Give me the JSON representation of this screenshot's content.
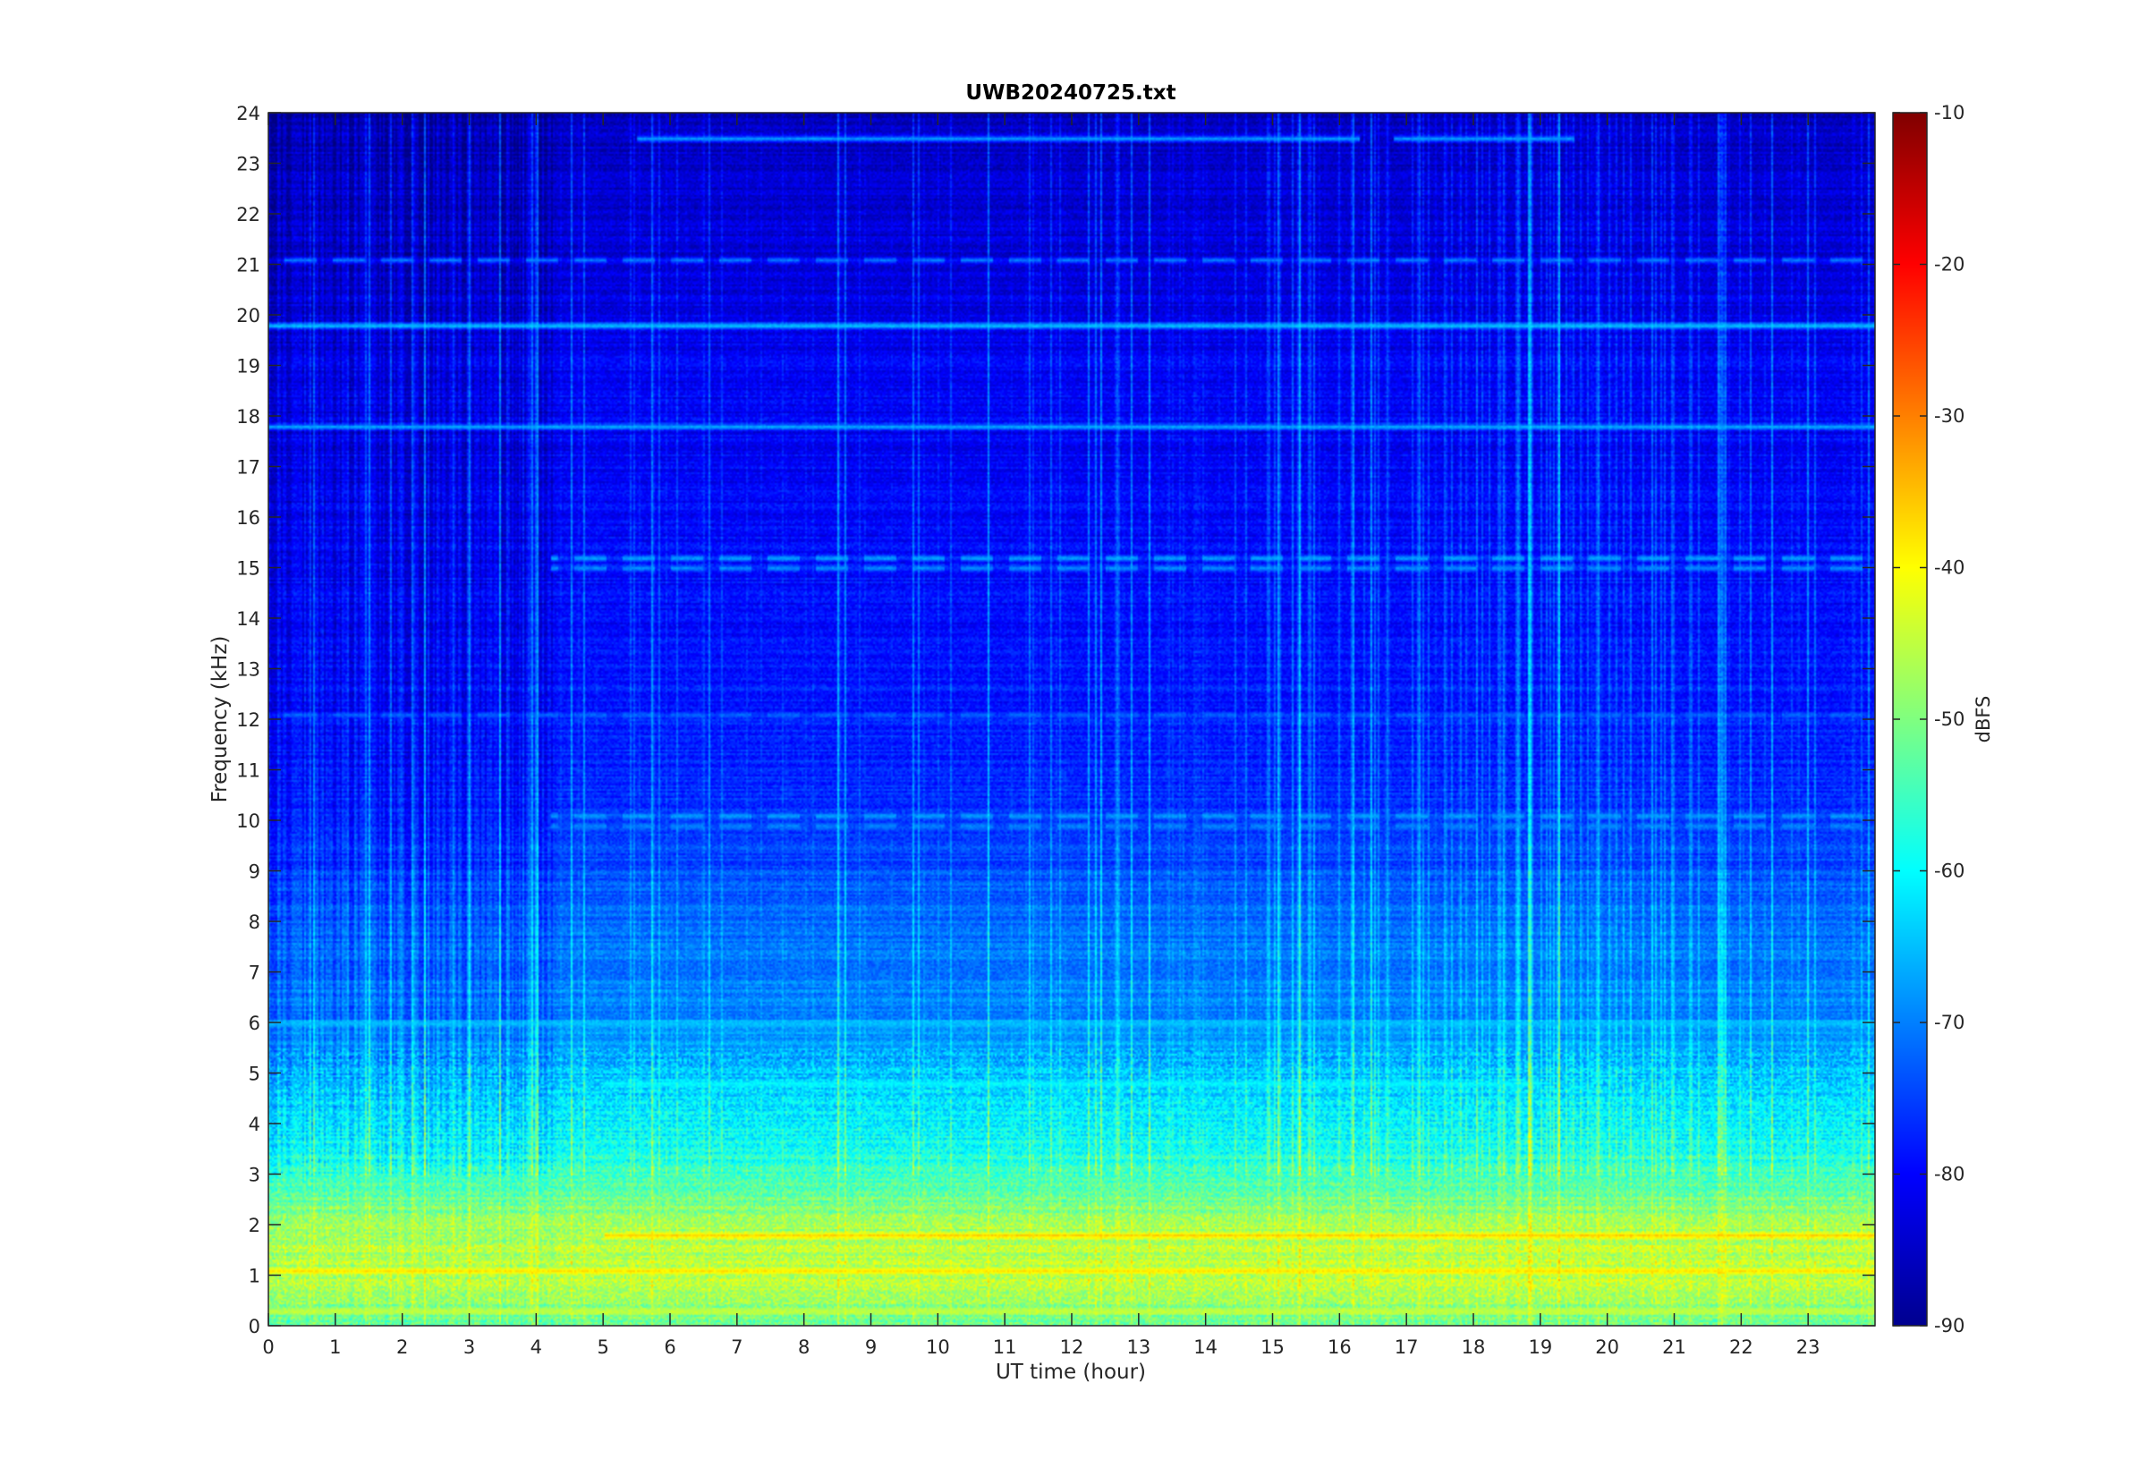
{
  "chart_data": {
    "type": "heatmap",
    "title": "UWB20240725.txt",
    "xlabel": "UT time (hour)",
    "ylabel": "Frequency (kHz)",
    "xlim": [
      0,
      24
    ],
    "ylim": [
      0,
      24
    ],
    "xticks": [
      0,
      1,
      2,
      3,
      4,
      5,
      6,
      7,
      8,
      9,
      10,
      11,
      12,
      13,
      14,
      15,
      16,
      17,
      18,
      19,
      20,
      21,
      22,
      23
    ],
    "yticks": [
      0,
      1,
      2,
      3,
      4,
      5,
      6,
      7,
      8,
      9,
      10,
      11,
      12,
      13,
      14,
      15,
      16,
      17,
      18,
      19,
      20,
      21,
      22,
      23,
      24
    ],
    "colorbar": {
      "label": "dBFS",
      "colormap": "jet",
      "clim": [
        -90,
        -10
      ],
      "ticks": [
        -10,
        -20,
        -30,
        -40,
        -50,
        -60,
        -70,
        -80,
        -90
      ]
    },
    "background_level_profile": [
      {
        "freq_khz": 0,
        "level_dbfs": -52
      },
      {
        "freq_khz": 1,
        "level_dbfs": -45
      },
      {
        "freq_khz": 2,
        "level_dbfs": -47
      },
      {
        "freq_khz": 3,
        "level_dbfs": -56
      },
      {
        "freq_khz": 4,
        "level_dbfs": -61
      },
      {
        "freq_khz": 5,
        "level_dbfs": -65
      },
      {
        "freq_khz": 6,
        "level_dbfs": -69
      },
      {
        "freq_khz": 8,
        "level_dbfs": -72
      },
      {
        "freq_khz": 10,
        "level_dbfs": -76
      },
      {
        "freq_khz": 13,
        "level_dbfs": -79
      },
      {
        "freq_khz": 16,
        "level_dbfs": -80
      },
      {
        "freq_khz": 19,
        "level_dbfs": -81
      },
      {
        "freq_khz": 21,
        "level_dbfs": -83
      },
      {
        "freq_khz": 24,
        "level_dbfs": -85
      }
    ],
    "narrowband_lines": [
      {
        "freq_khz": 19.8,
        "level_dbfs": -63,
        "t_start": 0,
        "t_end": 24
      },
      {
        "freq_khz": 17.8,
        "level_dbfs": -66,
        "t_start": 0,
        "t_end": 24
      },
      {
        "freq_khz": 23.5,
        "level_dbfs": -67,
        "t_start": 5.5,
        "t_end": 16.3
      },
      {
        "freq_khz": 23.5,
        "level_dbfs": -67,
        "t_start": 16.8,
        "t_end": 19.5
      },
      {
        "freq_khz": 21.1,
        "level_dbfs": -70,
        "t_start": 0,
        "t_end": 24
      },
      {
        "freq_khz": 15.2,
        "level_dbfs": -66,
        "t_start": 4.2,
        "t_end": 24
      },
      {
        "freq_khz": 15.0,
        "level_dbfs": -68,
        "t_start": 4.2,
        "t_end": 24
      },
      {
        "freq_khz": 10.1,
        "level_dbfs": -67,
        "t_start": 4.2,
        "t_end": 24
      },
      {
        "freq_khz": 9.9,
        "level_dbfs": -69,
        "t_start": 4.2,
        "t_end": 24
      },
      {
        "freq_khz": 12.1,
        "level_dbfs": -72,
        "t_start": 0,
        "t_end": 24
      },
      {
        "freq_khz": 6.0,
        "level_dbfs": -64,
        "t_start": 0,
        "t_end": 24
      },
      {
        "freq_khz": 4.8,
        "level_dbfs": -60,
        "t_start": 5,
        "t_end": 19
      },
      {
        "freq_khz": 1.8,
        "level_dbfs": -36,
        "t_start": 5,
        "t_end": 24
      },
      {
        "freq_khz": 1.1,
        "level_dbfs": -38,
        "t_start": 0,
        "t_end": 24
      },
      {
        "freq_khz": 0.3,
        "level_dbfs": -44,
        "t_start": 0,
        "t_end": 24
      }
    ]
  }
}
